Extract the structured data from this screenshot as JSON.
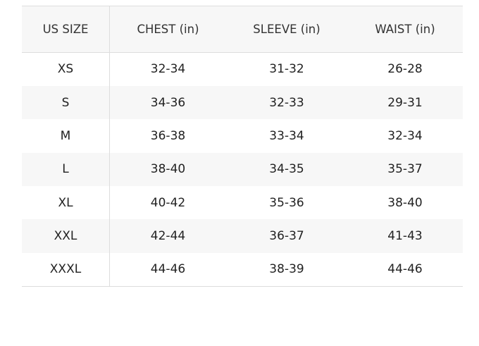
{
  "table": {
    "headers": [
      "US SIZE",
      "CHEST (in)",
      "SLEEVE (in)",
      "WAIST (in)"
    ],
    "rows": [
      [
        "XS",
        "32-34",
        "31-32",
        "26-28"
      ],
      [
        "S",
        "34-36",
        "32-33",
        "29-31"
      ],
      [
        "M",
        "36-38",
        "33-34",
        "32-34"
      ],
      [
        "L",
        "38-40",
        "34-35",
        "35-37"
      ],
      [
        "XL",
        "40-42",
        "35-36",
        "38-40"
      ],
      [
        "XXL",
        "42-44",
        "36-37",
        "41-43"
      ],
      [
        "XXXL",
        "44-46",
        "38-39",
        "44-46"
      ]
    ]
  }
}
